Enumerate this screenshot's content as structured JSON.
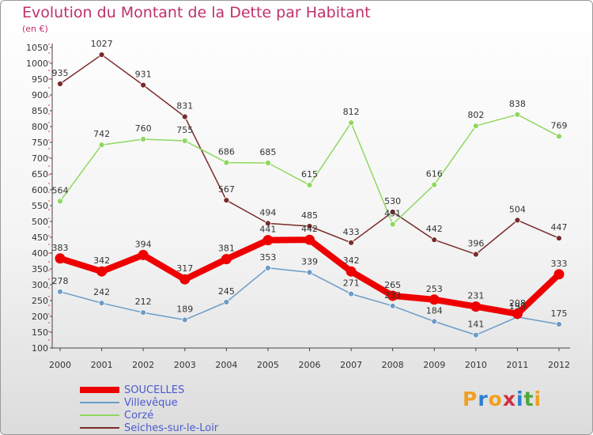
{
  "title": "Evolution du Montant de la Dette par Habitant",
  "unit": "(en €)",
  "brand": {
    "letters": [
      "P",
      "r",
      "o",
      "x",
      "i",
      "t",
      "i"
    ],
    "colors": [
      "#f0a020",
      "#2d7fd0",
      "#f0a020",
      "#d03040",
      "#2d7fd0",
      "#4aa83a",
      "#f0a020"
    ]
  },
  "chart_data": {
    "type": "line",
    "title": "Evolution du Montant de la Dette par Habitant",
    "ylabel": "(en €)",
    "xlabel": "",
    "ylim": [
      100,
      1050
    ],
    "ytick_step": 50,
    "grid": false,
    "legend_position": "bottom-left",
    "x": [
      "2000",
      "2001",
      "2002",
      "2003",
      "2004",
      "2005",
      "2006",
      "2007",
      "2008",
      "2009",
      "2010",
      "2011",
      "2012"
    ],
    "series": [
      {
        "name": "SOUCELLES",
        "color": "#ee0000",
        "values": [
          383,
          342,
          394,
          317,
          381,
          441,
          442,
          342,
          265,
          253,
          231,
          208,
          333
        ]
      },
      {
        "name": "Villevêque",
        "color": "#6a9cc8",
        "values": [
          278,
          242,
          212,
          189,
          245,
          353,
          339,
          271,
          233,
          184,
          141,
          198,
          175
        ]
      },
      {
        "name": "Corzé",
        "color": "#8fd860",
        "values": [
          564,
          742,
          760,
          755,
          686,
          685,
          615,
          812,
          491,
          616,
          802,
          838,
          769
        ]
      },
      {
        "name": "Seiches-sur-le-Loir",
        "color": "#7a2a2a",
        "values": [
          935,
          1027,
          931,
          831,
          567,
          494,
          485,
          433,
          530,
          442,
          396,
          504,
          447
        ]
      }
    ]
  }
}
